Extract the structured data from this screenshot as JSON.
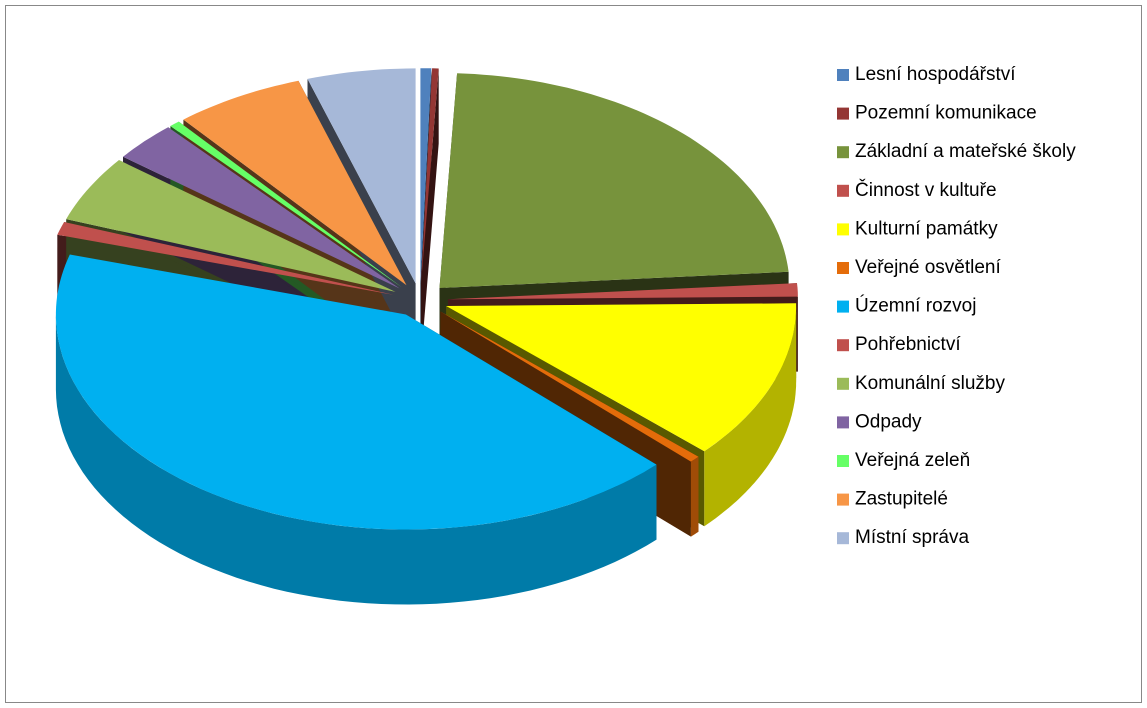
{
  "chart_data": {
    "type": "pie",
    "three_d": true,
    "exploded": true,
    "categories": [
      "Lesní hospodářství",
      "Pozemní komunikace",
      "Základní a mateřské školy",
      "Činnost v kultuře",
      "Kulturní památky",
      "Veřejné osvětlení",
      "Územní rozvoj",
      "Pohřebnictví",
      "Komunální služby",
      "Odpady",
      "Veřejná zeleň",
      "Zastupitelé",
      "Místní správa"
    ],
    "values": [
      0.5,
      0.3,
      23,
      1,
      12,
      0.5,
      42.2,
      1,
      5,
      3,
      0.5,
      6,
      5
    ],
    "colors": [
      "#4f81bd",
      "#943634",
      "#77933c",
      "#c0504d",
      "#ffff00",
      "#e46c0a",
      "#00b0f0",
      "#c0504d",
      "#9bbb59",
      "#8064a2",
      "#66ff66",
      "#f79646",
      "#a6b8d8"
    ],
    "legend": "right"
  }
}
